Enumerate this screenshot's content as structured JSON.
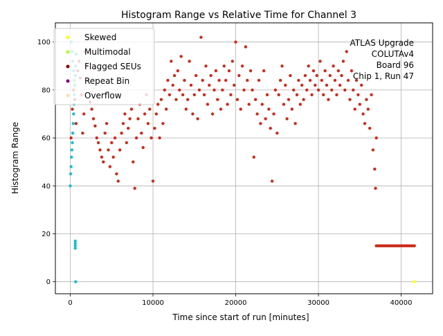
{
  "chart_data": {
    "type": "scatter",
    "title": "Histogram Range vs Relative Time for Channel 3",
    "xlabel": "Time since start of run [minutes]",
    "ylabel": "Histogram Range",
    "xlim": [
      -1800,
      43800
    ],
    "ylim": [
      -5,
      108
    ],
    "xticks": [
      0,
      10000,
      20000,
      30000,
      40000
    ],
    "xtick_labels": [
      "0",
      "10000",
      "20000",
      "30000",
      "40000"
    ],
    "yticks": [
      0,
      20,
      40,
      60,
      80,
      100
    ],
    "ytick_labels": [
      "0",
      "20",
      "40",
      "60",
      "80",
      "100"
    ],
    "grid": true,
    "legend_position": "top-left",
    "annotation": [
      "ATLAS Upgrade",
      "COLUTAv4",
      "Board 96",
      "Chip 1, Run 47"
    ],
    "legend": [
      {
        "name": "Skewed",
        "color": "#ffff00"
      },
      {
        "name": "Multimodal",
        "color": "#adff2f"
      },
      {
        "name": "Flagged SEUs",
        "color": "#8b0000"
      },
      {
        "name": "Repeat Bin",
        "color": "#800080"
      },
      {
        "name": "Overflow",
        "color": "#ffdead"
      }
    ],
    "series": [
      {
        "name": "Flagged SEUs",
        "color": "#cc2a1a",
        "points": [
          [
            100,
            60
          ],
          [
            250,
            72
          ],
          [
            400,
            80
          ],
          [
            550,
            76
          ],
          [
            700,
            66
          ],
          [
            900,
            88
          ],
          [
            1050,
            92
          ],
          [
            1200,
            85
          ],
          [
            1350,
            78
          ],
          [
            1500,
            62
          ],
          [
            1650,
            70
          ],
          [
            1800,
            96
          ],
          [
            2000,
            90
          ],
          [
            2200,
            84
          ],
          [
            2400,
            75
          ],
          [
            2600,
            72
          ],
          [
            2800,
            68
          ],
          [
            3000,
            65
          ],
          [
            3200,
            60
          ],
          [
            3400,
            58
          ],
          [
            3600,
            55
          ],
          [
            3800,
            52
          ],
          [
            4000,
            50
          ],
          [
            4200,
            62
          ],
          [
            4400,
            66
          ],
          [
            4600,
            55
          ],
          [
            4800,
            48
          ],
          [
            5000,
            58
          ],
          [
            5200,
            52
          ],
          [
            5400,
            60
          ],
          [
            5600,
            45
          ],
          [
            5800,
            42
          ],
          [
            6000,
            55
          ],
          [
            6200,
            62
          ],
          [
            6400,
            66
          ],
          [
            6600,
            70
          ],
          [
            6800,
            58
          ],
          [
            7000,
            64
          ],
          [
            7200,
            68
          ],
          [
            7400,
            72
          ],
          [
            7600,
            50
          ],
          [
            7800,
            39
          ],
          [
            8000,
            60
          ],
          [
            8200,
            68
          ],
          [
            8400,
            74
          ],
          [
            8600,
            62
          ],
          [
            8800,
            56
          ],
          [
            9000,
            70
          ],
          [
            9200,
            78
          ],
          [
            9400,
            66
          ],
          [
            9600,
            72
          ],
          [
            9800,
            60
          ],
          [
            10000,
            42
          ],
          [
            10200,
            64
          ],
          [
            10400,
            70
          ],
          [
            10600,
            74
          ],
          [
            10800,
            60
          ],
          [
            11000,
            76
          ],
          [
            11200,
            66
          ],
          [
            11400,
            80
          ],
          [
            11600,
            72
          ],
          [
            11800,
            84
          ],
          [
            12000,
            78
          ],
          [
            12200,
            92
          ],
          [
            12400,
            82
          ],
          [
            12600,
            86
          ],
          [
            12800,
            76
          ],
          [
            13000,
            88
          ],
          [
            13200,
            80
          ],
          [
            13400,
            94
          ],
          [
            13600,
            78
          ],
          [
            13800,
            84
          ],
          [
            14000,
            72
          ],
          [
            14200,
            76
          ],
          [
            14400,
            92
          ],
          [
            14600,
            82
          ],
          [
            14800,
            70
          ],
          [
            15000,
            78
          ],
          [
            15200,
            86
          ],
          [
            15400,
            68
          ],
          [
            15600,
            80
          ],
          [
            15800,
            102
          ],
          [
            16000,
            84
          ],
          [
            16200,
            78
          ],
          [
            16400,
            90
          ],
          [
            16600,
            74
          ],
          [
            16800,
            82
          ],
          [
            17000,
            86
          ],
          [
            17200,
            70
          ],
          [
            17400,
            80
          ],
          [
            17600,
            88
          ],
          [
            17800,
            76
          ],
          [
            18000,
            84
          ],
          [
            18200,
            72
          ],
          [
            18400,
            80
          ],
          [
            18600,
            90
          ],
          [
            18800,
            84
          ],
          [
            19000,
            74
          ],
          [
            19200,
            88
          ],
          [
            19400,
            78
          ],
          [
            19600,
            92
          ],
          [
            19800,
            82
          ],
          [
            20000,
            100
          ],
          [
            20200,
            76
          ],
          [
            20400,
            86
          ],
          [
            20600,
            72
          ],
          [
            20800,
            90
          ],
          [
            21000,
            80
          ],
          [
            21200,
            98
          ],
          [
            21400,
            84
          ],
          [
            21600,
            74
          ],
          [
            21800,
            88
          ],
          [
            22000,
            80
          ],
          [
            22200,
            52
          ],
          [
            22400,
            76
          ],
          [
            22600,
            70
          ],
          [
            22800,
            84
          ],
          [
            23000,
            66
          ],
          [
            23200,
            74
          ],
          [
            23400,
            88
          ],
          [
            23600,
            68
          ],
          [
            23800,
            78
          ],
          [
            24000,
            72
          ],
          [
            24200,
            64
          ],
          [
            24400,
            42
          ],
          [
            24600,
            70
          ],
          [
            24800,
            80
          ],
          [
            25000,
            62
          ],
          [
            25200,
            78
          ],
          [
            25400,
            84
          ],
          [
            25600,
            90
          ],
          [
            25800,
            74
          ],
          [
            26000,
            82
          ],
          [
            26200,
            68
          ],
          [
            26400,
            76
          ],
          [
            26600,
            86
          ],
          [
            26800,
            72
          ],
          [
            27000,
            80
          ],
          [
            27200,
            66
          ],
          [
            27400,
            78
          ],
          [
            27600,
            84
          ],
          [
            27800,
            74
          ],
          [
            28000,
            82
          ],
          [
            28200,
            76
          ],
          [
            28400,
            86
          ],
          [
            28600,
            80
          ],
          [
            28800,
            90
          ],
          [
            29000,
            84
          ],
          [
            29200,
            78
          ],
          [
            29400,
            88
          ],
          [
            29600,
            82
          ],
          [
            29800,
            86
          ],
          [
            30000,
            80
          ],
          [
            30200,
            92
          ],
          [
            30400,
            84
          ],
          [
            30600,
            78
          ],
          [
            30800,
            88
          ],
          [
            31000,
            82
          ],
          [
            31200,
            76
          ],
          [
            31400,
            86
          ],
          [
            31600,
            80
          ],
          [
            31800,
            90
          ],
          [
            32000,
            84
          ],
          [
            32200,
            78
          ],
          [
            32400,
            88
          ],
          [
            32600,
            82
          ],
          [
            32800,
            86
          ],
          [
            33000,
            92
          ],
          [
            33200,
            80
          ],
          [
            33400,
            96
          ],
          [
            33600,
            84
          ],
          [
            33800,
            76
          ],
          [
            34000,
            88
          ],
          [
            34200,
            80
          ],
          [
            34400,
            72
          ],
          [
            34600,
            84
          ],
          [
            34800,
            78
          ],
          [
            35000,
            74
          ],
          [
            35200,
            82
          ],
          [
            35400,
            70
          ],
          [
            35600,
            66
          ],
          [
            35800,
            76
          ],
          [
            36000,
            72
          ],
          [
            36200,
            64
          ],
          [
            36400,
            78
          ],
          [
            36600,
            55
          ],
          [
            36800,
            47
          ],
          [
            36900,
            39
          ],
          [
            37000,
            60
          ],
          [
            37000,
            15
          ],
          [
            37200,
            15
          ],
          [
            37400,
            15
          ],
          [
            37600,
            15
          ],
          [
            37800,
            15
          ],
          [
            38000,
            15
          ],
          [
            38200,
            15
          ],
          [
            38400,
            15
          ],
          [
            38600,
            15
          ],
          [
            38800,
            15
          ],
          [
            39000,
            15
          ],
          [
            39200,
            15
          ],
          [
            39400,
            15
          ],
          [
            39600,
            15
          ],
          [
            39800,
            15
          ],
          [
            40000,
            15
          ],
          [
            40200,
            15
          ],
          [
            40400,
            15
          ],
          [
            40600,
            15
          ],
          [
            40800,
            15
          ],
          [
            41000,
            15
          ],
          [
            41200,
            15
          ],
          [
            41400,
            15
          ],
          [
            41600,
            15
          ]
        ]
      },
      {
        "name": "",
        "color": "#17becf",
        "points": [
          [
            0,
            40
          ],
          [
            50,
            45
          ],
          [
            100,
            48
          ],
          [
            150,
            52
          ],
          [
            200,
            55
          ],
          [
            250,
            58
          ],
          [
            300,
            62
          ],
          [
            350,
            66
          ],
          [
            400,
            70
          ],
          [
            450,
            74
          ],
          [
            500,
            78
          ],
          [
            550,
            82
          ],
          [
            600,
            86
          ],
          [
            650,
            90
          ],
          [
            700,
            95
          ],
          [
            100,
            100
          ],
          [
            200,
            96
          ],
          [
            300,
            92
          ],
          [
            400,
            88
          ],
          [
            500,
            84
          ],
          [
            600,
            14
          ],
          [
            600,
            15
          ],
          [
            600,
            16
          ],
          [
            600,
            17
          ],
          [
            650,
            0
          ]
        ]
      },
      {
        "name": "Skewed",
        "color": "#ffff00",
        "points": [
          [
            41600,
            0
          ]
        ]
      }
    ]
  }
}
